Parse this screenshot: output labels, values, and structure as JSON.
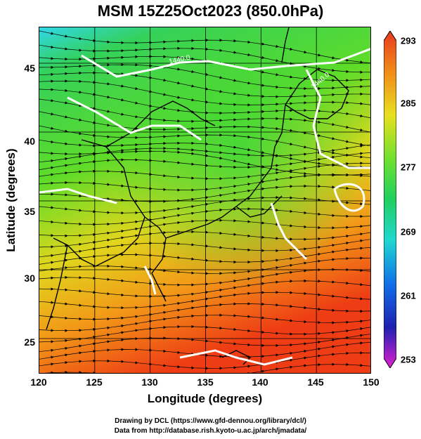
{
  "title": "MSM 15Z25Oct2023 (850.0hPa)",
  "map": {
    "xlabel": "Longitude (degrees)",
    "ylabel": "Latitude  (degrees)",
    "x_ticks": [
      "120",
      "125",
      "130",
      "135",
      "140",
      "145",
      "150"
    ],
    "y_ticks": [
      "45",
      "40",
      "35",
      "30",
      "25"
    ],
    "lon_range": [
      120,
      150
    ],
    "lat_range": [
      22.4,
      47.6
    ],
    "contour_labels": [
      "1440.0",
      "1440.0"
    ],
    "variable": "temperature (K) with wind streamlines",
    "colors": {
      "cold": "#2fd8e8",
      "mid": "#34d134",
      "warm": "#f0d020",
      "hot": "#f05a1a",
      "contour": "#ffffff",
      "coast": "#000000"
    }
  },
  "colorbar": {
    "ticks": [
      "293",
      "285",
      "277",
      "269",
      "261",
      "253"
    ],
    "range": [
      253,
      293
    ]
  },
  "credits": [
    "Drawing by DCL (https://www.gfd-dennou.org/library/dcl/)",
    "Data from http://database.rish.kyoto-u.ac.jp/arch/jmadata/"
  ]
}
